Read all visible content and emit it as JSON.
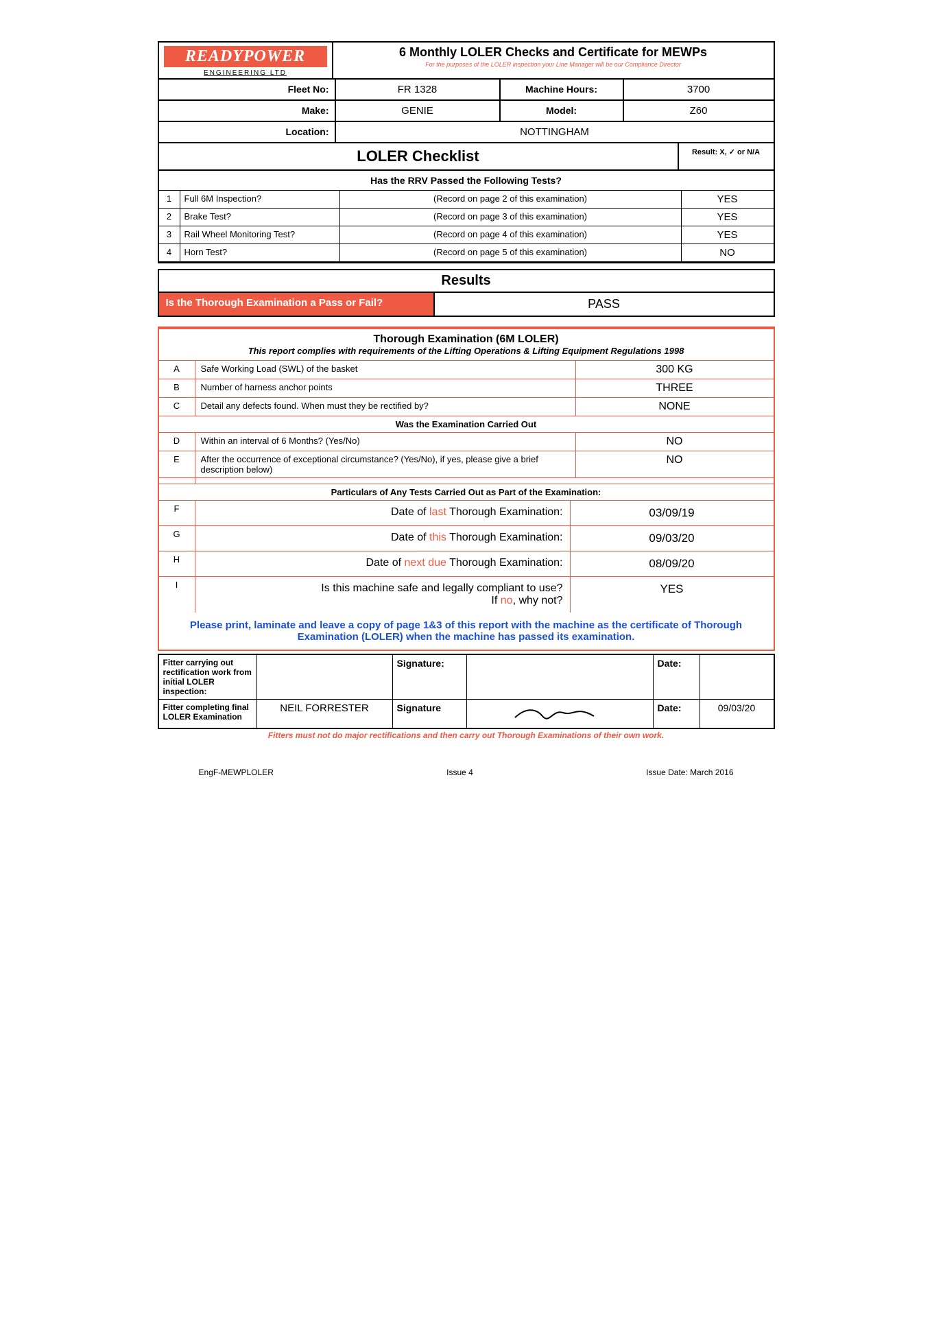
{
  "brand": {
    "name": "READYPOWER",
    "sub": "ENGINEERING LTD"
  },
  "title": {
    "line1": "6 Monthly LOLER Checks and Certificate for MEWPs",
    "line2": "For the purposes of the LOLER inspection your Line Manager will be our Compliance Director"
  },
  "info": {
    "fleet_label": "Fleet No:",
    "fleet": "FR 1328",
    "hours_label": "Machine Hours:",
    "hours": "3700",
    "make_label": "Make:",
    "make": "GENIE",
    "model_label": "Model:",
    "model": "Z60",
    "loc_label": "Location:",
    "loc": "NOTTINGHAM"
  },
  "checklist": {
    "heading": "LOLER Checklist",
    "result_legend": "Result: X, ✓ or N/A",
    "question": "Has the RRV Passed the Following Tests?",
    "rows": [
      {
        "n": "1",
        "q": "Full 6M Inspection?",
        "note": "(Record on page 2 of this examination)",
        "r": "YES"
      },
      {
        "n": "2",
        "q": "Brake Test?",
        "note": "(Record on page 3 of this examination)",
        "r": "YES"
      },
      {
        "n": "3",
        "q": "Rail Wheel Monitoring Test?",
        "note": "(Record on page 4 of this examination)",
        "r": "YES"
      },
      {
        "n": "4",
        "q": "Horn Test?",
        "note": "(Record on page 5 of this examination)",
        "r": "NO"
      }
    ]
  },
  "results": {
    "heading": "Results",
    "q": "Is the Thorough Examination a Pass or Fail?",
    "v": "PASS"
  },
  "thorough": {
    "h1": "Thorough Examination (6M LOLER)",
    "h2": "This report complies with requirements of the Lifting Operations & Lifting Equipment Regulations 1998",
    "rows1": [
      {
        "l": "A",
        "q": "Safe Working Load (SWL) of the basket",
        "v": "300 KG"
      },
      {
        "l": "B",
        "q": "Number of harness anchor points",
        "v": "THREE"
      },
      {
        "l": "C",
        "q": "Detail any defects found. When must they be rectified by?",
        "v": "NONE"
      }
    ],
    "sub1": "Was the Examination Carried Out",
    "rows2": [
      {
        "l": "D",
        "q": "Within an interval of 6 Months? (Yes/No)",
        "v": "NO"
      },
      {
        "l": "E",
        "q": "After the occurrence of exceptional circumstance? (Yes/No), if yes, please give a brief description below)",
        "v": "NO"
      }
    ],
    "sub2": "Particulars of Any Tests Carried Out as Part of the Examination:",
    "rows3": [
      {
        "l": "F",
        "pre": "Date of ",
        "red": "last",
        "post": " Thorough Examination:",
        "v": "03/09/19"
      },
      {
        "l": "G",
        "pre": "Date of ",
        "red": "this",
        "post": " Thorough Examination:",
        "v": "09/03/20"
      },
      {
        "l": "H",
        "pre": "Date of ",
        "red": "next due",
        "post": " Thorough Examination:",
        "v": "08/09/20"
      },
      {
        "l": "I",
        "pre": "Is this machine safe and legally compliant to use?\nIf ",
        "red": "no",
        "post": ", why not?",
        "v": "YES"
      }
    ],
    "blue": "Please print, laminate and leave a copy of page 1&3 of this report with the machine as the certificate of Thorough Examination (LOLER) when the machine has passed its examination."
  },
  "signoff": {
    "row1": {
      "c1": "Fitter carrying out rectification work from initial LOLER inspection:",
      "c2": "",
      "c3": "Signature:",
      "c4": "",
      "c5": "Date:",
      "c6": ""
    },
    "row2": {
      "c1": "Fitter completing final LOLER Examination",
      "c2": "NEIL FORRESTER",
      "c3": "Signature",
      "c4": "(signature)",
      "c5": "Date:",
      "c6": "09/03/20"
    },
    "note": "Fitters must not do major rectifications and then carry out Thorough Examinations of their own work."
  },
  "footer": {
    "a": "EngF-MEWPLOLER",
    "b": "Issue 4",
    "c": "Issue Date: March 2016"
  },
  "colors": {
    "accent": "#ef5a44",
    "link": "#1a4fd6",
    "text": "#000000",
    "bg": "#ffffff"
  }
}
